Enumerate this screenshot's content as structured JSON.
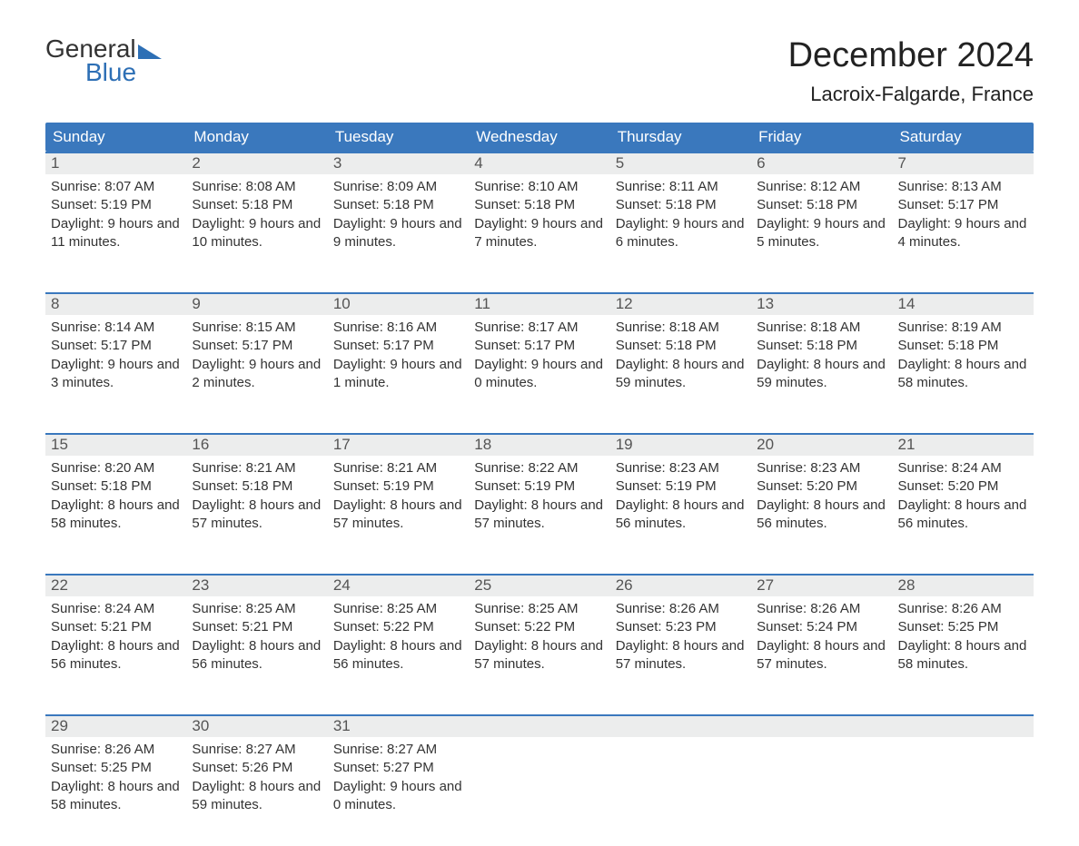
{
  "brand": {
    "word1": "General",
    "word2": "Blue",
    "accent_color": "#2d6fb5"
  },
  "title": "December 2024",
  "location": "Lacroix-Falgarde, France",
  "colors": {
    "header_bg": "#3a78bd",
    "header_text": "#ffffff",
    "week_border": "#3a78bd",
    "daynum_bg": "#eceded",
    "text": "#333333",
    "background": "#ffffff"
  },
  "typography": {
    "title_fontsize": 38,
    "location_fontsize": 22,
    "dayheader_fontsize": 17,
    "body_fontsize": 15
  },
  "day_headers": [
    "Sunday",
    "Monday",
    "Tuesday",
    "Wednesday",
    "Thursday",
    "Friday",
    "Saturday"
  ],
  "weeks": [
    [
      {
        "day": "1",
        "sunrise": "Sunrise: 8:07 AM",
        "sunset": "Sunset: 5:19 PM",
        "daylight": "Daylight: 9 hours and 11 minutes."
      },
      {
        "day": "2",
        "sunrise": "Sunrise: 8:08 AM",
        "sunset": "Sunset: 5:18 PM",
        "daylight": "Daylight: 9 hours and 10 minutes."
      },
      {
        "day": "3",
        "sunrise": "Sunrise: 8:09 AM",
        "sunset": "Sunset: 5:18 PM",
        "daylight": "Daylight: 9 hours and 9 minutes."
      },
      {
        "day": "4",
        "sunrise": "Sunrise: 8:10 AM",
        "sunset": "Sunset: 5:18 PM",
        "daylight": "Daylight: 9 hours and 7 minutes."
      },
      {
        "day": "5",
        "sunrise": "Sunrise: 8:11 AM",
        "sunset": "Sunset: 5:18 PM",
        "daylight": "Daylight: 9 hours and 6 minutes."
      },
      {
        "day": "6",
        "sunrise": "Sunrise: 8:12 AM",
        "sunset": "Sunset: 5:18 PM",
        "daylight": "Daylight: 9 hours and 5 minutes."
      },
      {
        "day": "7",
        "sunrise": "Sunrise: 8:13 AM",
        "sunset": "Sunset: 5:17 PM",
        "daylight": "Daylight: 9 hours and 4 minutes."
      }
    ],
    [
      {
        "day": "8",
        "sunrise": "Sunrise: 8:14 AM",
        "sunset": "Sunset: 5:17 PM",
        "daylight": "Daylight: 9 hours and 3 minutes."
      },
      {
        "day": "9",
        "sunrise": "Sunrise: 8:15 AM",
        "sunset": "Sunset: 5:17 PM",
        "daylight": "Daylight: 9 hours and 2 minutes."
      },
      {
        "day": "10",
        "sunrise": "Sunrise: 8:16 AM",
        "sunset": "Sunset: 5:17 PM",
        "daylight": "Daylight: 9 hours and 1 minute."
      },
      {
        "day": "11",
        "sunrise": "Sunrise: 8:17 AM",
        "sunset": "Sunset: 5:17 PM",
        "daylight": "Daylight: 9 hours and 0 minutes."
      },
      {
        "day": "12",
        "sunrise": "Sunrise: 8:18 AM",
        "sunset": "Sunset: 5:18 PM",
        "daylight": "Daylight: 8 hours and 59 minutes."
      },
      {
        "day": "13",
        "sunrise": "Sunrise: 8:18 AM",
        "sunset": "Sunset: 5:18 PM",
        "daylight": "Daylight: 8 hours and 59 minutes."
      },
      {
        "day": "14",
        "sunrise": "Sunrise: 8:19 AM",
        "sunset": "Sunset: 5:18 PM",
        "daylight": "Daylight: 8 hours and 58 minutes."
      }
    ],
    [
      {
        "day": "15",
        "sunrise": "Sunrise: 8:20 AM",
        "sunset": "Sunset: 5:18 PM",
        "daylight": "Daylight: 8 hours and 58 minutes."
      },
      {
        "day": "16",
        "sunrise": "Sunrise: 8:21 AM",
        "sunset": "Sunset: 5:18 PM",
        "daylight": "Daylight: 8 hours and 57 minutes."
      },
      {
        "day": "17",
        "sunrise": "Sunrise: 8:21 AM",
        "sunset": "Sunset: 5:19 PM",
        "daylight": "Daylight: 8 hours and 57 minutes."
      },
      {
        "day": "18",
        "sunrise": "Sunrise: 8:22 AM",
        "sunset": "Sunset: 5:19 PM",
        "daylight": "Daylight: 8 hours and 57 minutes."
      },
      {
        "day": "19",
        "sunrise": "Sunrise: 8:23 AM",
        "sunset": "Sunset: 5:19 PM",
        "daylight": "Daylight: 8 hours and 56 minutes."
      },
      {
        "day": "20",
        "sunrise": "Sunrise: 8:23 AM",
        "sunset": "Sunset: 5:20 PM",
        "daylight": "Daylight: 8 hours and 56 minutes."
      },
      {
        "day": "21",
        "sunrise": "Sunrise: 8:24 AM",
        "sunset": "Sunset: 5:20 PM",
        "daylight": "Daylight: 8 hours and 56 minutes."
      }
    ],
    [
      {
        "day": "22",
        "sunrise": "Sunrise: 8:24 AM",
        "sunset": "Sunset: 5:21 PM",
        "daylight": "Daylight: 8 hours and 56 minutes."
      },
      {
        "day": "23",
        "sunrise": "Sunrise: 8:25 AM",
        "sunset": "Sunset: 5:21 PM",
        "daylight": "Daylight: 8 hours and 56 minutes."
      },
      {
        "day": "24",
        "sunrise": "Sunrise: 8:25 AM",
        "sunset": "Sunset: 5:22 PM",
        "daylight": "Daylight: 8 hours and 56 minutes."
      },
      {
        "day": "25",
        "sunrise": "Sunrise: 8:25 AM",
        "sunset": "Sunset: 5:22 PM",
        "daylight": "Daylight: 8 hours and 57 minutes."
      },
      {
        "day": "26",
        "sunrise": "Sunrise: 8:26 AM",
        "sunset": "Sunset: 5:23 PM",
        "daylight": "Daylight: 8 hours and 57 minutes."
      },
      {
        "day": "27",
        "sunrise": "Sunrise: 8:26 AM",
        "sunset": "Sunset: 5:24 PM",
        "daylight": "Daylight: 8 hours and 57 minutes."
      },
      {
        "day": "28",
        "sunrise": "Sunrise: 8:26 AM",
        "sunset": "Sunset: 5:25 PM",
        "daylight": "Daylight: 8 hours and 58 minutes."
      }
    ],
    [
      {
        "day": "29",
        "sunrise": "Sunrise: 8:26 AM",
        "sunset": "Sunset: 5:25 PM",
        "daylight": "Daylight: 8 hours and 58 minutes."
      },
      {
        "day": "30",
        "sunrise": "Sunrise: 8:27 AM",
        "sunset": "Sunset: 5:26 PM",
        "daylight": "Daylight: 8 hours and 59 minutes."
      },
      {
        "day": "31",
        "sunrise": "Sunrise: 8:27 AM",
        "sunset": "Sunset: 5:27 PM",
        "daylight": "Daylight: 9 hours and 0 minutes."
      },
      null,
      null,
      null,
      null
    ]
  ]
}
